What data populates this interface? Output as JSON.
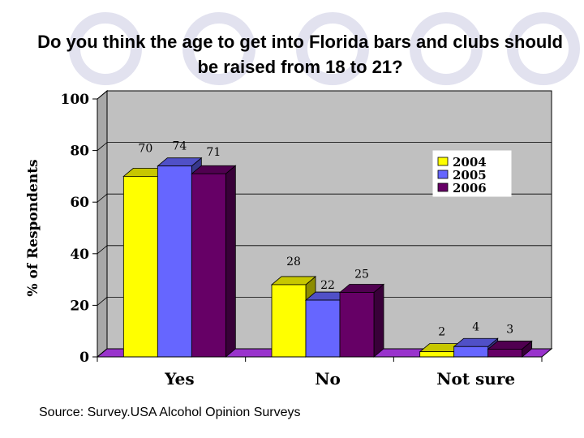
{
  "title": "Do you think the age to get into Florida bars and clubs should be raised from 18 to 21?",
  "source": "Source: Survey.USA Alcohol Opinion Surveys",
  "colors": {
    "deco": "#e8e8f4",
    "plot_bg": "#c0c0c0",
    "floor": "#9933cc",
    "2004": "#ffff00",
    "2005": "#6666ff",
    "2006": "#660066"
  },
  "chart_data": {
    "type": "bar",
    "categories": [
      "Yes",
      "No",
      "Not sure"
    ],
    "series": [
      {
        "name": "2004",
        "values": [
          70,
          28,
          2
        ]
      },
      {
        "name": "2005",
        "values": [
          74,
          22,
          4
        ]
      },
      {
        "name": "2006",
        "values": [
          71,
          25,
          3
        ]
      }
    ],
    "ylabel": "% of Respondents",
    "xlabel": "",
    "ylim": [
      0,
      100
    ],
    "yticks": [
      0,
      20,
      40,
      60,
      80,
      100
    ],
    "grid": true,
    "legend": "top-right"
  }
}
